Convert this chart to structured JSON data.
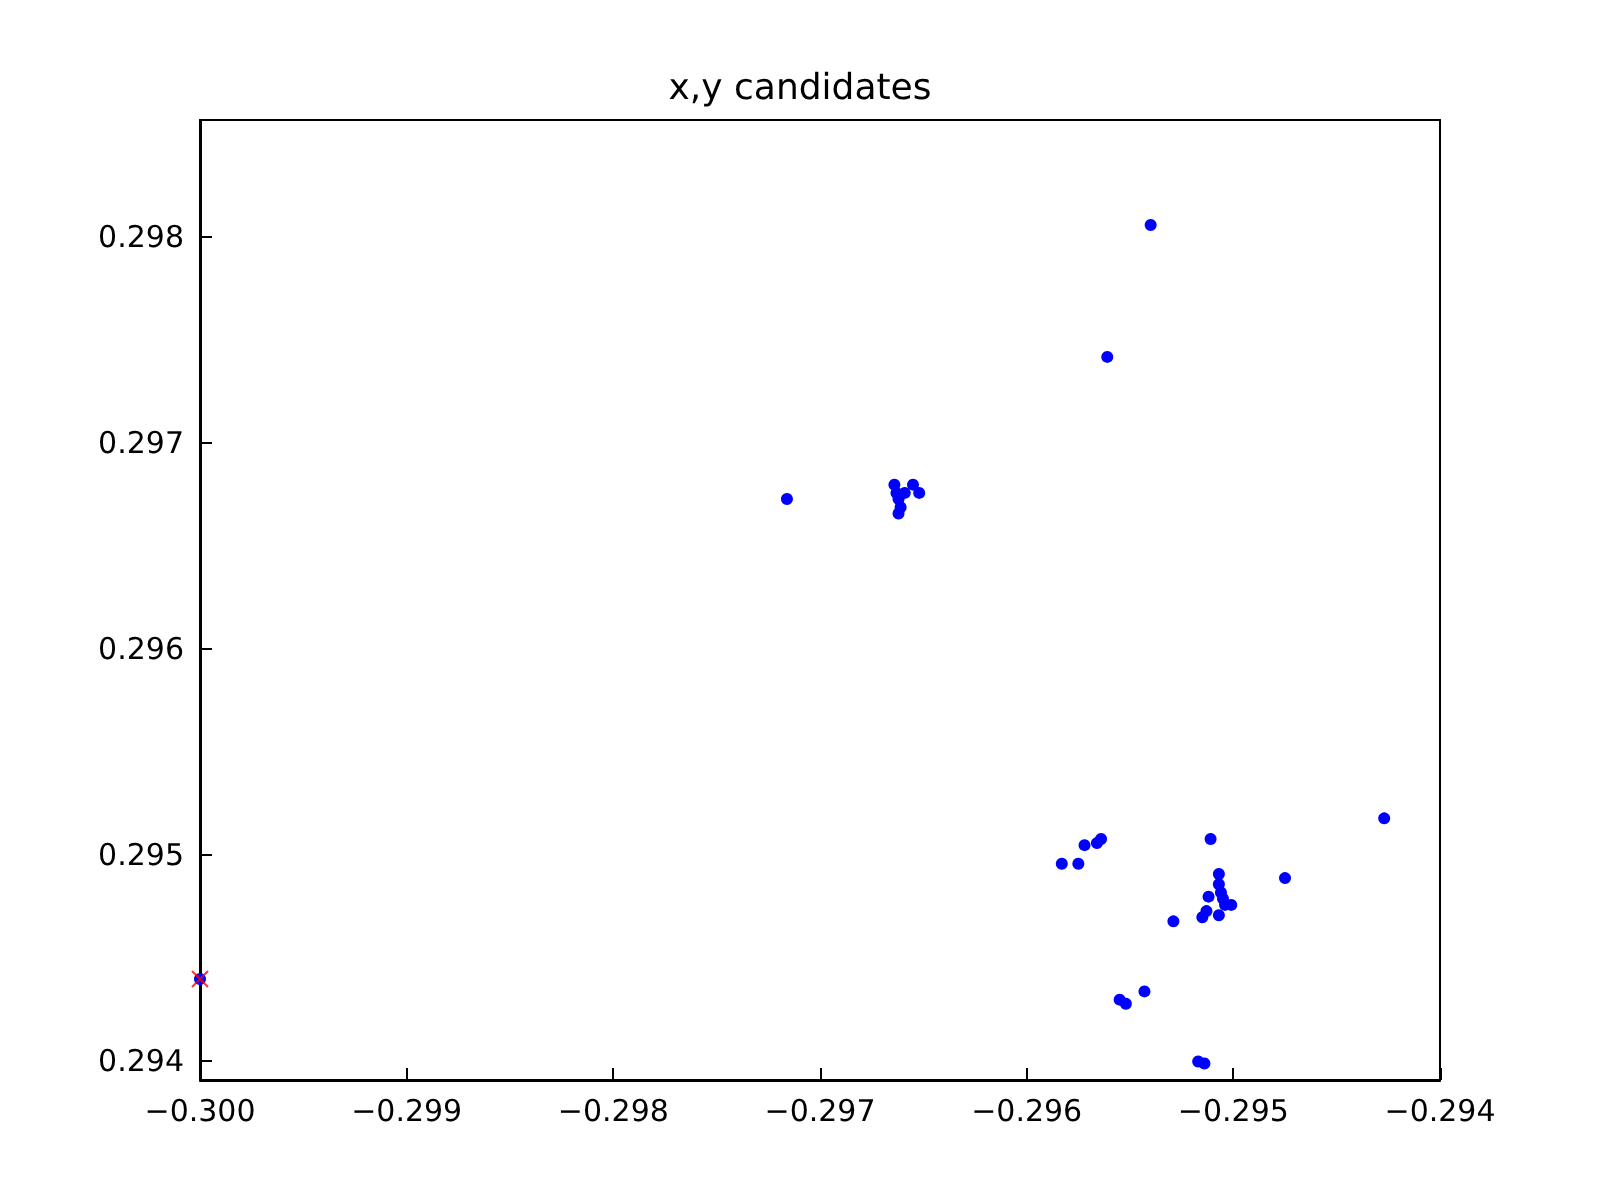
{
  "chart_data": {
    "type": "scatter",
    "title": "x,y candidates",
    "xlim": [
      -0.3,
      -0.294
    ],
    "ylim": [
      0.29391,
      0.29857
    ],
    "xticks": [
      {
        "value": -0.3,
        "label": "−0.300"
      },
      {
        "value": -0.299,
        "label": "−0.299"
      },
      {
        "value": -0.298,
        "label": "−0.298"
      },
      {
        "value": -0.297,
        "label": "−0.297"
      },
      {
        "value": -0.296,
        "label": "−0.296"
      },
      {
        "value": -0.295,
        "label": "−0.295"
      },
      {
        "value": -0.294,
        "label": "−0.294"
      }
    ],
    "yticks": [
      {
        "value": 0.294,
        "label": "0.294"
      },
      {
        "value": 0.295,
        "label": "0.295"
      },
      {
        "value": 0.296,
        "label": "0.296"
      },
      {
        "value": 0.297,
        "label": "0.297"
      },
      {
        "value": 0.298,
        "label": "0.298"
      }
    ],
    "grid": false,
    "series": [
      {
        "color": "#0000ff",
        "marker": "circle",
        "x": [
          -0.2954,
          -0.29561,
          -0.29716,
          -0.29664,
          -0.29663,
          -0.29662,
          -0.29661,
          -0.29662,
          -0.29655,
          -0.29652,
          -0.29659,
          -0.29583,
          -0.29572,
          -0.29575,
          -0.29566,
          -0.29564,
          -0.29511,
          -0.29475,
          -0.29427,
          -0.29507,
          -0.29507,
          -0.29506,
          -0.29505,
          -0.29504,
          -0.29501,
          -0.29512,
          -0.29507,
          -0.29513,
          -0.29515,
          -0.29529,
          -0.29543,
          -0.29555,
          -0.29552,
          -0.29517,
          -0.29514,
          -0.3
        ],
        "values": [
          0.29806,
          0.29742,
          0.29673,
          0.2968,
          0.29676,
          0.29673,
          0.29669,
          0.29666,
          0.2968,
          0.29676,
          0.29676,
          0.29496,
          0.29505,
          0.29496,
          0.29506,
          0.29508,
          0.29508,
          0.29489,
          0.29518,
          0.29491,
          0.29486,
          0.29482,
          0.29479,
          0.29476,
          0.29476,
          0.2948,
          0.29471,
          0.29473,
          0.2947,
          0.29468,
          0.29434,
          0.2943,
          0.29428,
          0.294,
          0.29399,
          0.2944
        ]
      },
      {
        "color": "#ff0000",
        "marker": "cross",
        "x": [
          -0.3
        ],
        "values": [
          0.2944
        ]
      }
    ]
  }
}
